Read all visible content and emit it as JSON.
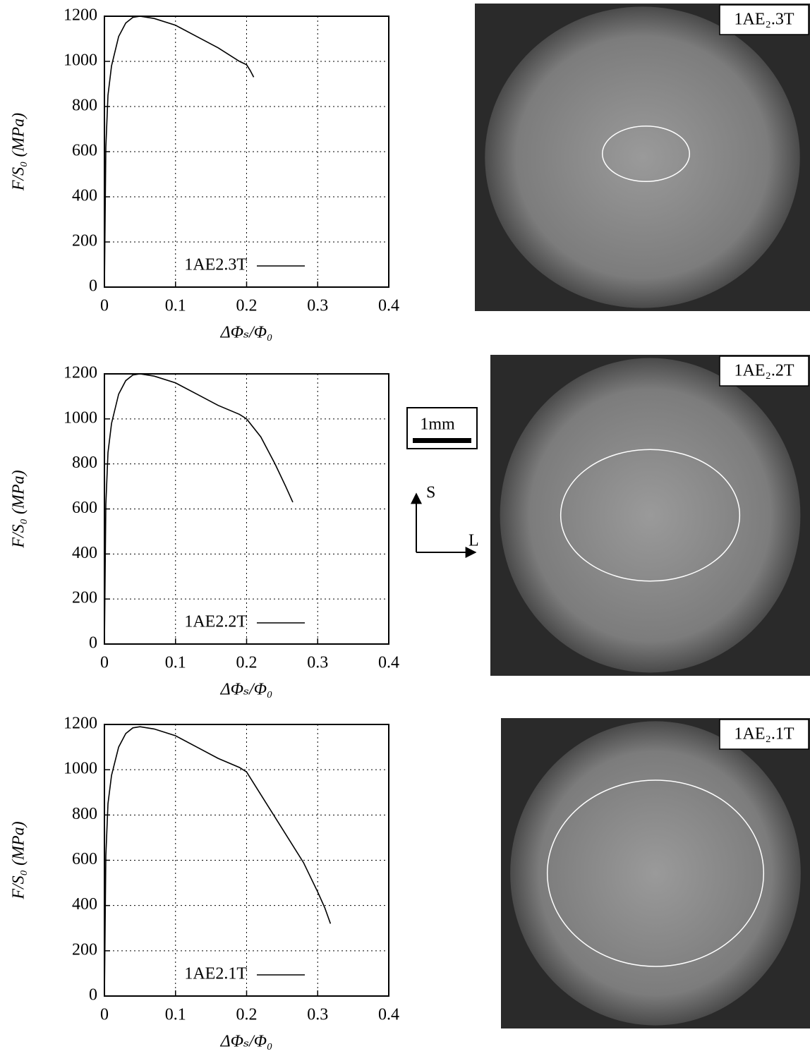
{
  "chart_data": [
    {
      "type": "line",
      "x_label": "ΔΦₛ/Φ₀",
      "y_label": "F/S₀ (MPa)",
      "x": [
        0,
        0.002,
        0.005,
        0.01,
        0.02,
        0.03,
        0.04,
        0.05,
        0.07,
        0.1,
        0.13,
        0.16,
        0.19,
        0.2,
        0.205,
        0.21
      ],
      "series": [
        {
          "name": "1AE2.3T",
          "color": "#000000",
          "values": [
            0,
            620,
            850,
            980,
            1110,
            1170,
            1195,
            1200,
            1190,
            1160,
            1110,
            1060,
            1000,
            985,
            960,
            930
          ]
        }
      ],
      "xlim": [
        0,
        0.4
      ],
      "ylim": [
        0,
        1200
      ],
      "xticks": [
        0,
        0.1,
        0.2,
        0.3,
        0.4
      ],
      "yticks": [
        0,
        200,
        400,
        600,
        800,
        1000,
        1200
      ],
      "grid": true,
      "legend": "bottom-right"
    },
    {
      "type": "line",
      "x_label": "ΔΦₛ/Φ₀",
      "y_label": "F/S₀ (MPa)",
      "x": [
        0,
        0.002,
        0.005,
        0.01,
        0.02,
        0.03,
        0.04,
        0.05,
        0.07,
        0.1,
        0.13,
        0.16,
        0.19,
        0.2,
        0.22,
        0.24,
        0.255,
        0.265
      ],
      "series": [
        {
          "name": "1AE2.2T",
          "color": "#000000",
          "values": [
            0,
            620,
            850,
            980,
            1110,
            1170,
            1195,
            1200,
            1190,
            1160,
            1110,
            1060,
            1020,
            1000,
            920,
            800,
            700,
            630
          ]
        }
      ],
      "xlim": [
        0,
        0.4
      ],
      "ylim": [
        0,
        1200
      ],
      "xticks": [
        0,
        0.1,
        0.2,
        0.3,
        0.4
      ],
      "yticks": [
        0,
        200,
        400,
        600,
        800,
        1000,
        1200
      ],
      "grid": true,
      "legend": "bottom-right"
    },
    {
      "type": "line",
      "x_label": "ΔΦₛ/Φ₀",
      "y_label": "F/S₀ (MPa)",
      "x": [
        0,
        0.002,
        0.005,
        0.01,
        0.02,
        0.03,
        0.04,
        0.05,
        0.07,
        0.1,
        0.13,
        0.16,
        0.19,
        0.2,
        0.22,
        0.25,
        0.28,
        0.3,
        0.31,
        0.318
      ],
      "series": [
        {
          "name": "1AE2.1T",
          "color": "#000000",
          "values": [
            0,
            620,
            850,
            975,
            1100,
            1160,
            1185,
            1190,
            1180,
            1150,
            1100,
            1050,
            1010,
            990,
            890,
            740,
            590,
            460,
            390,
            320
          ]
        }
      ],
      "xlim": [
        0,
        0.4
      ],
      "ylim": [
        0,
        1200
      ],
      "xticks": [
        0,
        0.1,
        0.2,
        0.3,
        0.4
      ],
      "yticks": [
        0,
        200,
        400,
        600,
        800,
        1000,
        1200
      ],
      "grid": true,
      "legend": "bottom-right"
    }
  ],
  "images": [
    {
      "label": "1AE₂.3T"
    },
    {
      "label": "1AE₂.2T"
    },
    {
      "label": "1AE₂.1T"
    }
  ],
  "scale_bar": "1mm",
  "orientation": {
    "vertical": "S",
    "horizontal": "L"
  }
}
